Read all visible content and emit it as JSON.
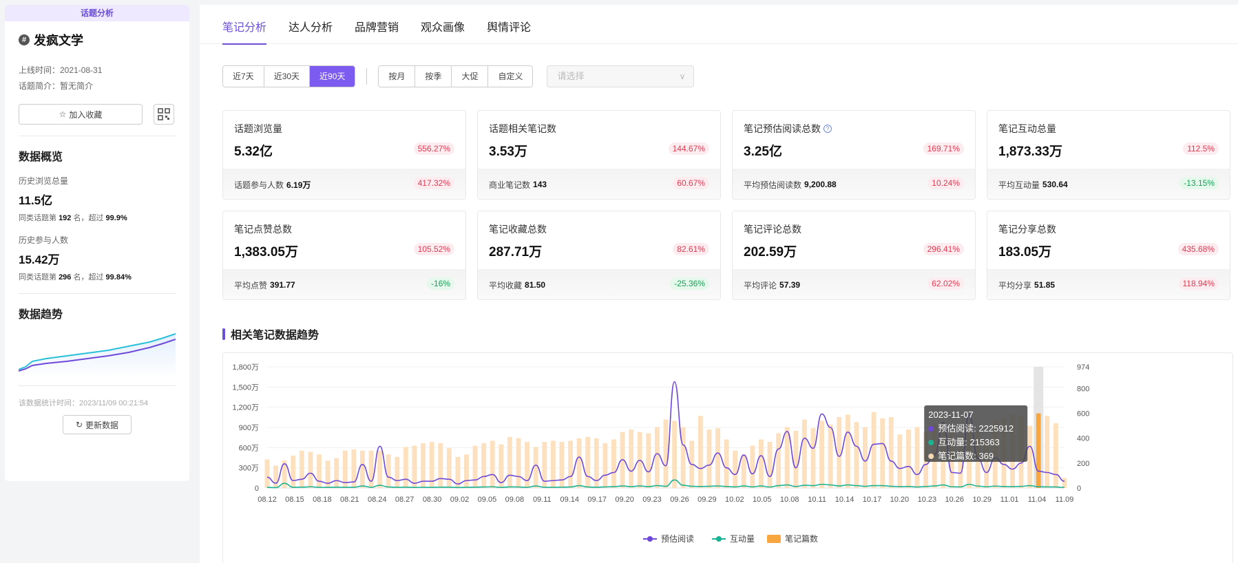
{
  "sidebar": {
    "badge": "话题分析",
    "topic_name": "发疯文学",
    "hash_symbol": "#",
    "online_label": "上线时间：2021-08-31",
    "intro_label": "话题简介：暂无简介",
    "fav_button": "加入收藏",
    "overview_title": "数据概览",
    "history_views_label": "历史浏览总量",
    "history_views_value": "11.5亿",
    "history_views_rank_pre": "同类话题第",
    "history_views_rank": "192",
    "history_views_rank_mid": "名，超过",
    "history_views_pct": "99.9%",
    "history_users_label": "历史参与人数",
    "history_users_value": "15.42万",
    "history_users_rank_pre": "同类话题第",
    "history_users_rank": "296",
    "history_users_rank_mid": "名，超过",
    "history_users_pct": "99.84%",
    "trend_title": "数据趋势",
    "stat_time": "该数据统计时间：2023/11/09 00:21:54",
    "refresh_button": "更新数据"
  },
  "tabs": [
    "笔记分析",
    "达人分析",
    "品牌营销",
    "观众画像",
    "舆情评论"
  ],
  "active_tab": 0,
  "filters": {
    "range": [
      "近7天",
      "近30天",
      "近90天"
    ],
    "range_active": 2,
    "period": [
      "按月",
      "按季",
      "大促",
      "自定义"
    ],
    "select_placeholder": "请选择"
  },
  "cards": [
    {
      "label": "话题浏览量",
      "value": "5.32亿",
      "change": "556.27%",
      "trend": "up",
      "sub_label": "话题参与人数",
      "sub_value": "6.19万",
      "sub_change": "417.32%",
      "sub_trend": "up",
      "help": false
    },
    {
      "label": "话题相关笔记数",
      "value": "3.53万",
      "change": "144.67%",
      "trend": "up",
      "sub_label": "商业笔记数",
      "sub_value": "143",
      "sub_change": "60.67%",
      "sub_trend": "up",
      "help": false
    },
    {
      "label": "笔记预估阅读总数",
      "value": "3.25亿",
      "change": "169.71%",
      "trend": "up",
      "sub_label": "平均预估阅读数",
      "sub_value": "9,200.88",
      "sub_change": "10.24%",
      "sub_trend": "up",
      "help": true
    },
    {
      "label": "笔记互动总量",
      "value": "1,873.33万",
      "change": "112.5%",
      "trend": "up",
      "sub_label": "平均互动量",
      "sub_value": "530.64",
      "sub_change": "-13.15%",
      "sub_trend": "down",
      "help": false
    },
    {
      "label": "笔记点赞总数",
      "value": "1,383.05万",
      "change": "105.52%",
      "trend": "up",
      "sub_label": "平均点赞",
      "sub_value": "391.77",
      "sub_change": "-16%",
      "sub_trend": "down",
      "help": false
    },
    {
      "label": "笔记收藏总数",
      "value": "287.71万",
      "change": "82.61%",
      "trend": "up",
      "sub_label": "平均收藏",
      "sub_value": "81.50",
      "sub_change": "-25.36%",
      "sub_trend": "down",
      "help": false
    },
    {
      "label": "笔记评论总数",
      "value": "202.59万",
      "change": "296.41%",
      "trend": "up",
      "sub_label": "平均评论",
      "sub_value": "57.39",
      "sub_change": "62.02%",
      "sub_trend": "up",
      "help": false
    },
    {
      "label": "笔记分享总数",
      "value": "183.05万",
      "change": "435.68%",
      "trend": "up",
      "sub_label": "平均分享",
      "sub_value": "51.85",
      "sub_change": "118.94%",
      "sub_trend": "up",
      "help": false
    }
  ],
  "section_title": "相关笔记数据趋势",
  "colors": {
    "accent": "#6b4fd8",
    "read": "#6e48d8",
    "interact": "#1ab394",
    "notes": "#f7a640",
    "up": "#e03a52",
    "down": "#18a058"
  },
  "chart_data": {
    "type": "line",
    "x_ticks": [
      "08.12",
      "08.15",
      "08.18",
      "08.21",
      "08.24",
      "08.27",
      "08.30",
      "09.02",
      "09.05",
      "09.08",
      "09.11",
      "09.14",
      "09.17",
      "09.20",
      "09.23",
      "09.26",
      "09.29",
      "10.02",
      "10.05",
      "10.08",
      "10.11",
      "10.14",
      "10.17",
      "10.20",
      "10.23",
      "10.26",
      "10.29",
      "11.01",
      "11.04",
      "11.09"
    ],
    "y_left_ticks": [
      "0",
      "300万",
      "600万",
      "900万",
      "1,200万",
      "1,500万",
      "1,800万"
    ],
    "y_left_max": 1800,
    "y_right_ticks": [
      "0",
      "200",
      "400",
      "600",
      "800",
      "974"
    ],
    "y_right_max": 974,
    "series": [
      {
        "name": "预估阅读",
        "color": "#6e48d8",
        "values": [
          160,
          70,
          360,
          110,
          130,
          220,
          100,
          70,
          110,
          80,
          90,
          350,
          100,
          620,
          160,
          110,
          130,
          70,
          100,
          100,
          140,
          130,
          60,
          110,
          120,
          170,
          200,
          80,
          190,
          170,
          110,
          340,
          100,
          110,
          120,
          170,
          460,
          170,
          110,
          190,
          230,
          420,
          250,
          410,
          240,
          510,
          330,
          1580,
          640,
          350,
          290,
          340,
          520,
          300,
          200,
          490,
          210,
          480,
          170,
          580,
          840,
          300,
          740,
          590,
          1100,
          900,
          470,
          830,
          620,
          400,
          650,
          660,
          400,
          290,
          320,
          200,
          350,
          490,
          970,
          230,
          220,
          1090,
          440,
          230,
          450,
          350,
          280,
          370,
          620,
          250,
          230,
          200,
          100
        ]
      },
      {
        "name": "互动量",
        "color": "#1ab394",
        "values": [
          10,
          5,
          70,
          10,
          12,
          18,
          10,
          8,
          12,
          10,
          10,
          30,
          10,
          40,
          15,
          10,
          12,
          8,
          10,
          10,
          12,
          12,
          7,
          10,
          12,
          15,
          18,
          8,
          16,
          15,
          10,
          30,
          10,
          10,
          12,
          15,
          35,
          15,
          10,
          16,
          20,
          30,
          20,
          30,
          20,
          35,
          25,
          120,
          40,
          25,
          22,
          25,
          30,
          22,
          16,
          30,
          16,
          30,
          14,
          35,
          45,
          22,
          40,
          35,
          55,
          45,
          30,
          45,
          35,
          25,
          35,
          35,
          25,
          20,
          22,
          15,
          22,
          30,
          45,
          18,
          16,
          55,
          28,
          18,
          28,
          22,
          20,
          24,
          35,
          18,
          16,
          15,
          8
        ]
      },
      {
        "name": "笔记篇数",
        "color": "#f7a640",
        "values": [
          230,
          180,
          220,
          260,
          300,
          290,
          270,
          220,
          240,
          300,
          310,
          300,
          300,
          300,
          270,
          250,
          330,
          340,
          360,
          370,
          360,
          320,
          250,
          270,
          340,
          360,
          380,
          350,
          410,
          400,
          370,
          330,
          370,
          380,
          370,
          380,
          400,
          410,
          400,
          360,
          390,
          450,
          470,
          450,
          440,
          490,
          550,
          540,
          490,
          380,
          580,
          470,
          480,
          390,
          300,
          270,
          340,
          390,
          370,
          440,
          490,
          460,
          550,
          480,
          540,
          510,
          570,
          590,
          530,
          490,
          610,
          560,
          570,
          430,
          470,
          490,
          450,
          510,
          530,
          470,
          420,
          520,
          460,
          370,
          540,
          560,
          590,
          580,
          500,
          600,
          580,
          520,
          80
        ]
      }
    ],
    "tooltip": {
      "date": "2023-11-07",
      "items": [
        {
          "name": "预估阅读",
          "value": "2225912"
        },
        {
          "name": "互动量",
          "value": "215363"
        },
        {
          "name": "笔记篇数",
          "value": "369"
        }
      ]
    },
    "legend": [
      "预估阅读",
      "互动量",
      "笔记篇数"
    ],
    "legend_position": "bottom-center"
  }
}
